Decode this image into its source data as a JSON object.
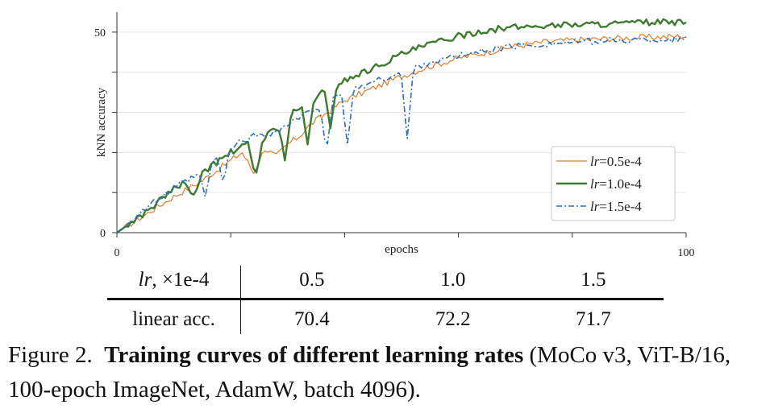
{
  "chart_data": {
    "type": "line",
    "xlabel": "epochs",
    "ylabel": "kNN accuracy",
    "xlim": [
      0,
      100
    ],
    "ylim": [
      0,
      55
    ],
    "xticks": [
      0,
      20,
      40,
      60,
      80,
      100
    ],
    "xtick_labels": [
      "0",
      "",
      "",
      "",
      "",
      "100"
    ],
    "yticks": [
      0,
      10,
      20,
      30,
      40,
      50
    ],
    "ytick_labels": [
      "0",
      "",
      "",
      "",
      "",
      "50"
    ],
    "grid": true,
    "legend_position": "lower-right",
    "series": [
      {
        "name": "lr=0.5e-4",
        "label_var": "lr",
        "label_value": "=0.5e-4",
        "color": "#e07b27",
        "style": "solid",
        "x": [
          0,
          5,
          10,
          15,
          20,
          22,
          24,
          26,
          28,
          30,
          32,
          34,
          36,
          38,
          40,
          45,
          50,
          55,
          60,
          65,
          70,
          75,
          80,
          85,
          90,
          95,
          100
        ],
        "y": [
          0,
          4.5,
          9,
          13,
          18,
          20,
          15,
          21,
          19,
          22,
          24,
          27,
          29,
          31,
          33,
          36,
          39,
          41.5,
          43.5,
          45,
          46.5,
          47.5,
          48,
          48.3,
          48.6,
          48.8,
          49
        ],
        "dips": []
      },
      {
        "name": "lr=1.0e-4",
        "label_var": "lr",
        "label_value": "=1.0e-4",
        "color": "#3e7a2f",
        "style": "solid-thick",
        "x": [
          0,
          5,
          10,
          12,
          13,
          15,
          20,
          23,
          24,
          25,
          26,
          28,
          30,
          32,
          34,
          36,
          38,
          40,
          45,
          50,
          55,
          60,
          65,
          70,
          75,
          80,
          85,
          90,
          95,
          100
        ],
        "y": [
          0,
          5,
          11,
          12.5,
          9.5,
          15,
          20,
          22,
          17,
          22,
          24,
          26,
          29,
          31,
          33,
          35,
          36.5,
          38,
          41,
          44.5,
          47,
          49,
          50.5,
          51.2,
          51.6,
          51.9,
          52,
          52.2,
          52.5,
          52.2
        ],
        "dips": [
          [
            13.5,
            9.5
          ],
          [
            24.5,
            15
          ],
          [
            29.5,
            18
          ],
          [
            33.5,
            22
          ],
          [
            37.5,
            26
          ]
        ]
      },
      {
        "name": "lr=1.5e-4",
        "label_var": "lr",
        "label_value": "=1.5e-4",
        "color": "#2e6fb6",
        "style": "dashdot",
        "x": [
          0,
          5,
          10,
          15,
          18,
          20,
          22,
          25,
          28,
          30,
          32,
          35,
          38,
          40,
          45,
          50,
          55,
          60,
          65,
          70,
          75,
          80,
          85,
          90,
          95,
          100
        ],
        "y": [
          0,
          6,
          11,
          15,
          19,
          21,
          23,
          24.5,
          25,
          27,
          28.5,
          31,
          33,
          35,
          37.5,
          40,
          42.5,
          44,
          45.5,
          46.5,
          47,
          47.5,
          47.8,
          48,
          48.1,
          48.2
        ],
        "dips": [
          [
            15.5,
            9
          ],
          [
            18.7,
            12
          ],
          [
            36.8,
            20
          ],
          [
            40.5,
            22
          ],
          [
            51,
            23.5
          ]
        ]
      }
    ]
  },
  "table": {
    "row1_head_var": "lr",
    "row1_head_rest": ", ×1e-4",
    "row1_values": [
      "0.5",
      "1.0",
      "1.5"
    ],
    "row2_head": "linear acc.",
    "row2_values": [
      "70.4",
      "72.2",
      "71.7"
    ]
  },
  "caption": {
    "prefix": "Figure 2.",
    "bold": "Training curves of different learning rates",
    "rest": " (MoCo v3, ViT-B/16, 100-epoch ImageNet, AdamW, batch 4096)."
  }
}
